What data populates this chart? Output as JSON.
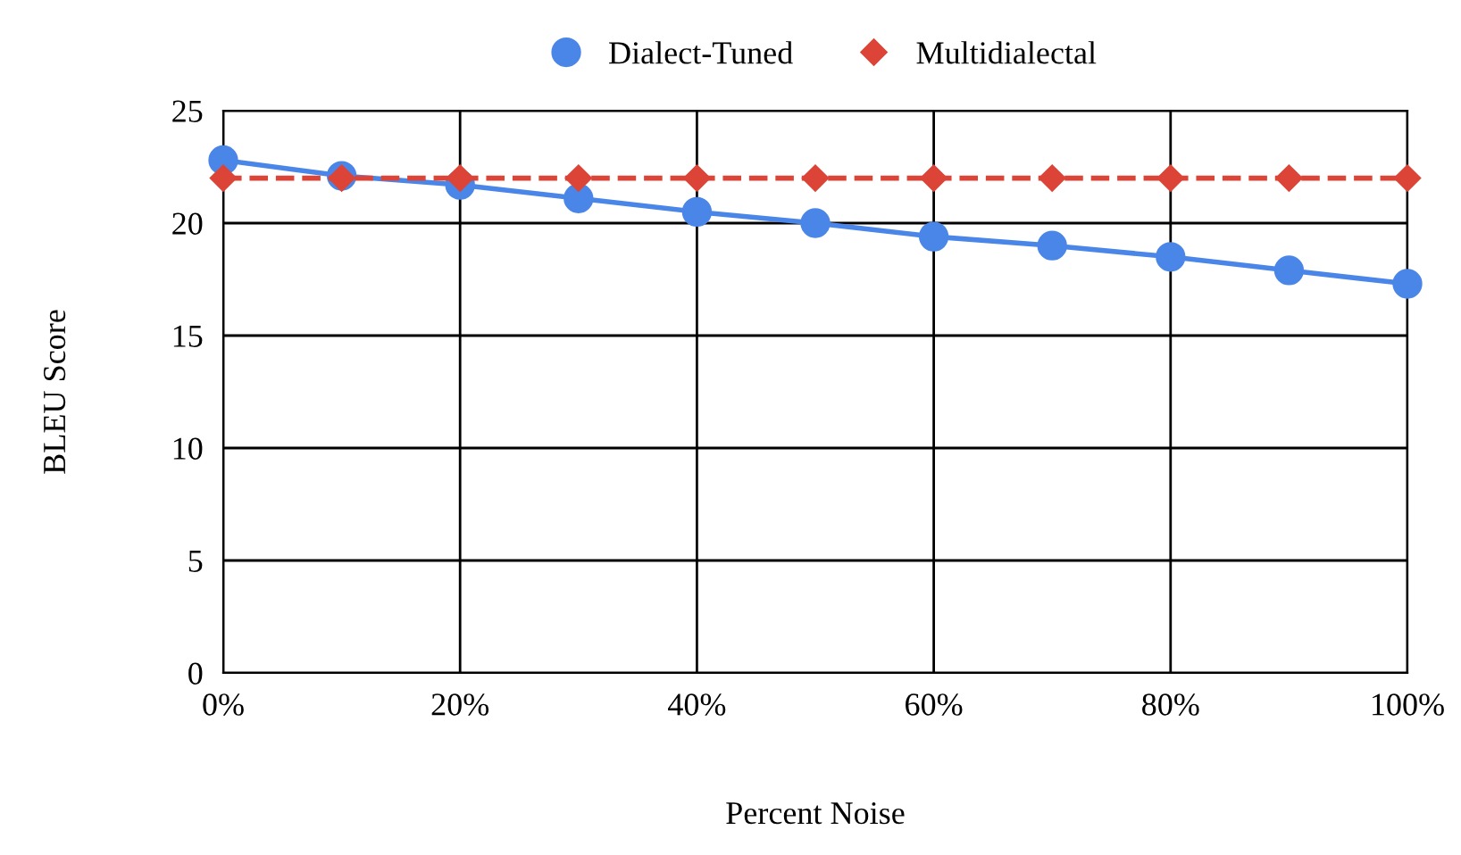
{
  "chart_data": {
    "type": "line",
    "xlabel": "Percent Noise",
    "ylabel": "BLEU Score",
    "x": [
      0,
      10,
      20,
      30,
      40,
      50,
      60,
      70,
      80,
      90,
      100
    ],
    "series": [
      {
        "name": "Dialect-Tuned",
        "color": "#4a86e8",
        "marker": "circle",
        "line_style": "solid",
        "values": [
          22.8,
          22.1,
          21.7,
          21.1,
          20.5,
          20.0,
          19.4,
          19.0,
          18.5,
          17.9,
          17.3
        ]
      },
      {
        "name": "Multidialectal",
        "color": "#db4437",
        "marker": "diamond",
        "line_style": "dashed",
        "values": [
          22.0,
          22.0,
          22.0,
          22.0,
          22.0,
          22.0,
          22.0,
          22.0,
          22.0,
          22.0,
          22.0
        ]
      }
    ],
    "xlim": [
      0,
      100
    ],
    "ylim": [
      0,
      25
    ],
    "xticks": [
      {
        "value": 0,
        "label": "0%"
      },
      {
        "value": 20,
        "label": "20%"
      },
      {
        "value": 40,
        "label": "40%"
      },
      {
        "value": 60,
        "label": "60%"
      },
      {
        "value": 80,
        "label": "80%"
      },
      {
        "value": 100,
        "label": "100%"
      }
    ],
    "yticks": [
      0,
      5,
      10,
      15,
      20,
      25
    ],
    "grid": true,
    "legend": "top"
  }
}
